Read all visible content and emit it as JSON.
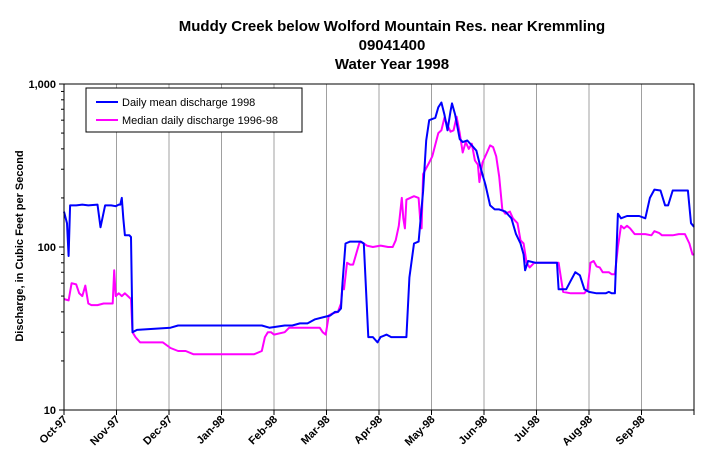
{
  "chart_data": {
    "type": "line",
    "title_lines": [
      "Muddy Creek below Wolford Mountain Res. near Kremmling",
      "09041400",
      "Water Year 1998"
    ],
    "ylabel": "Discharge, in Cubic Feet per Second",
    "xlabel": "",
    "y_scale": "log",
    "ylim": [
      10,
      1000
    ],
    "y_ticks": [
      10,
      100,
      1000
    ],
    "y_tick_labels": [
      "10",
      "100",
      "1,000"
    ],
    "x_tick_labels": [
      "Oct-97",
      "Nov-97",
      "Dec-97",
      "Jan-98",
      "Feb-98",
      "Mar-98",
      "Apr-98",
      "May-98",
      "Jun-98",
      "Jul-98",
      "Aug-98",
      "Sep-98"
    ],
    "grid": "vertical",
    "legend_position": "top-left",
    "series": [
      {
        "name": "Daily mean discharge 1998",
        "color": "#0000ff",
        "points": [
          [
            0,
            165
          ],
          [
            2,
            140
          ],
          [
            3,
            88
          ],
          [
            4,
            180
          ],
          [
            8,
            180
          ],
          [
            12,
            182
          ],
          [
            16,
            180
          ],
          [
            22,
            182
          ],
          [
            24,
            132
          ],
          [
            27,
            180
          ],
          [
            31,
            180
          ],
          [
            34,
            178
          ],
          [
            36,
            182
          ],
          [
            37,
            182
          ],
          [
            38,
            200
          ],
          [
            39,
            150
          ],
          [
            40,
            118
          ],
          [
            43,
            118
          ],
          [
            44,
            115
          ],
          [
            45,
            30
          ],
          [
            48,
            31
          ],
          [
            70,
            32
          ],
          [
            75,
            33
          ],
          [
            100,
            33
          ],
          [
            130,
            33
          ],
          [
            135,
            32
          ],
          [
            145,
            33
          ],
          [
            150,
            33
          ],
          [
            155,
            34
          ],
          [
            160,
            34
          ],
          [
            165,
            36
          ],
          [
            170,
            37
          ],
          [
            175,
            38
          ],
          [
            178,
            40
          ],
          [
            180,
            40
          ],
          [
            182,
            42
          ],
          [
            183,
            60
          ],
          [
            185,
            105
          ],
          [
            188,
            108
          ],
          [
            195,
            108
          ],
          [
            197,
            105
          ],
          [
            200,
            28
          ],
          [
            203,
            28
          ],
          [
            206,
            26
          ],
          [
            208,
            28
          ],
          [
            212,
            29
          ],
          [
            215,
            28
          ],
          [
            225,
            28
          ],
          [
            227,
            65
          ],
          [
            230,
            105
          ],
          [
            233,
            108
          ],
          [
            236,
            220
          ],
          [
            238,
            450
          ],
          [
            240,
            600
          ],
          [
            244,
            620
          ],
          [
            246,
            720
          ],
          [
            248,
            770
          ],
          [
            250,
            650
          ],
          [
            252,
            520
          ],
          [
            254,
            680
          ],
          [
            255,
            760
          ],
          [
            257,
            650
          ],
          [
            260,
            460
          ],
          [
            262,
            440
          ],
          [
            265,
            450
          ],
          [
            268,
            420
          ],
          [
            271,
            390
          ],
          [
            274,
            300
          ],
          [
            277,
            240
          ],
          [
            280,
            180
          ],
          [
            283,
            170
          ],
          [
            286,
            170
          ],
          [
            290,
            165
          ],
          [
            294,
            150
          ],
          [
            297,
            120
          ],
          [
            300,
            105
          ],
          [
            302,
            90
          ],
          [
            303,
            72
          ],
          [
            305,
            82
          ],
          [
            310,
            80
          ],
          [
            320,
            80
          ],
          [
            324,
            80
          ],
          [
            325,
            55
          ],
          [
            330,
            55
          ],
          [
            333,
            62
          ],
          [
            336,
            70
          ],
          [
            339,
            67
          ],
          [
            342,
            55
          ],
          [
            345,
            53
          ],
          [
            350,
            52
          ],
          [
            356,
            52
          ],
          [
            358,
            53
          ],
          [
            360,
            52
          ],
          [
            362,
            52
          ],
          [
            364,
            160
          ],
          [
            366,
            150
          ],
          [
            370,
            155
          ],
          [
            378,
            155
          ],
          [
            382,
            150
          ],
          [
            385,
            200
          ],
          [
            388,
            225
          ],
          [
            392,
            222
          ],
          [
            395,
            180
          ],
          [
            397,
            180
          ],
          [
            400,
            222
          ],
          [
            404,
            222
          ],
          [
            410,
            222
          ],
          [
            412,
            140
          ],
          [
            414,
            133
          ]
        ]
      },
      {
        "name": "Median daily discharge 1996-98",
        "color": "#ff00ff",
        "points": [
          [
            0,
            48
          ],
          [
            3,
            47
          ],
          [
            5,
            60
          ],
          [
            8,
            59
          ],
          [
            10,
            52
          ],
          [
            12,
            50
          ],
          [
            14,
            58
          ],
          [
            16,
            45
          ],
          [
            18,
            44
          ],
          [
            22,
            44
          ],
          [
            26,
            45
          ],
          [
            30,
            45
          ],
          [
            32,
            45
          ],
          [
            33,
            72
          ],
          [
            34,
            50
          ],
          [
            36,
            52
          ],
          [
            38,
            50
          ],
          [
            40,
            52
          ],
          [
            42,
            50
          ],
          [
            44,
            48
          ],
          [
            45,
            30
          ],
          [
            47,
            28
          ],
          [
            50,
            26
          ],
          [
            55,
            26
          ],
          [
            60,
            26
          ],
          [
            65,
            26
          ],
          [
            70,
            24
          ],
          [
            75,
            23
          ],
          [
            80,
            23
          ],
          [
            85,
            22
          ],
          [
            90,
            22
          ],
          [
            100,
            22
          ],
          [
            110,
            22
          ],
          [
            120,
            22
          ],
          [
            125,
            22
          ],
          [
            130,
            23
          ],
          [
            132,
            28
          ],
          [
            134,
            30
          ],
          [
            136,
            30
          ],
          [
            138,
            29
          ],
          [
            145,
            30
          ],
          [
            148,
            32
          ],
          [
            150,
            32
          ],
          [
            160,
            32
          ],
          [
            168,
            32
          ],
          [
            170,
            30
          ],
          [
            172,
            29
          ],
          [
            174,
            38
          ],
          [
            176,
            39
          ],
          [
            180,
            40
          ],
          [
            182,
            45
          ],
          [
            183,
            58
          ],
          [
            184,
            55
          ],
          [
            186,
            80
          ],
          [
            188,
            78
          ],
          [
            190,
            78
          ],
          [
            194,
            105
          ],
          [
            195,
            108
          ],
          [
            197,
            105
          ],
          [
            199,
            102
          ],
          [
            203,
            100
          ],
          [
            208,
            102
          ],
          [
            213,
            100
          ],
          [
            216,
            100
          ],
          [
            218,
            110
          ],
          [
            220,
            135
          ],
          [
            222,
            200
          ],
          [
            223,
            150
          ],
          [
            224,
            130
          ],
          [
            225,
            195
          ],
          [
            230,
            205
          ],
          [
            233,
            200
          ],
          [
            234,
            150
          ],
          [
            235,
            130
          ],
          [
            236,
            280
          ],
          [
            240,
            330
          ],
          [
            242,
            360
          ],
          [
            246,
            500
          ],
          [
            248,
            520
          ],
          [
            250,
            620
          ],
          [
            252,
            560
          ],
          [
            254,
            510
          ],
          [
            256,
            520
          ],
          [
            258,
            630
          ],
          [
            260,
            500
          ],
          [
            262,
            380
          ],
          [
            264,
            440
          ],
          [
            266,
            400
          ],
          [
            268,
            430
          ],
          [
            270,
            340
          ],
          [
            272,
            320
          ],
          [
            273,
            250
          ],
          [
            275,
            330
          ],
          [
            278,
            380
          ],
          [
            280,
            420
          ],
          [
            282,
            410
          ],
          [
            284,
            360
          ],
          [
            286,
            270
          ],
          [
            288,
            170
          ],
          [
            290,
            160
          ],
          [
            293,
            165
          ],
          [
            295,
            150
          ],
          [
            298,
            140
          ],
          [
            300,
            110
          ],
          [
            302,
            105
          ],
          [
            304,
            80
          ],
          [
            306,
            75
          ],
          [
            309,
            80
          ],
          [
            314,
            80
          ],
          [
            320,
            80
          ],
          [
            325,
            80
          ],
          [
            328,
            53
          ],
          [
            333,
            52
          ],
          [
            342,
            52
          ],
          [
            344,
            55
          ],
          [
            346,
            80
          ],
          [
            348,
            82
          ],
          [
            350,
            76
          ],
          [
            352,
            75
          ],
          [
            354,
            70
          ],
          [
            356,
            70
          ],
          [
            358,
            70
          ],
          [
            360,
            68
          ],
          [
            362,
            68
          ],
          [
            364,
            100
          ],
          [
            366,
            135
          ],
          [
            368,
            130
          ],
          [
            370,
            135
          ],
          [
            372,
            130
          ],
          [
            375,
            120
          ],
          [
            378,
            120
          ],
          [
            382,
            120
          ],
          [
            386,
            118
          ],
          [
            388,
            125
          ],
          [
            391,
            122
          ],
          [
            393,
            118
          ],
          [
            397,
            118
          ],
          [
            400,
            118
          ],
          [
            404,
            120
          ],
          [
            408,
            120
          ],
          [
            411,
            105
          ],
          [
            413,
            90
          ],
          [
            414,
            90
          ]
        ]
      }
    ]
  }
}
